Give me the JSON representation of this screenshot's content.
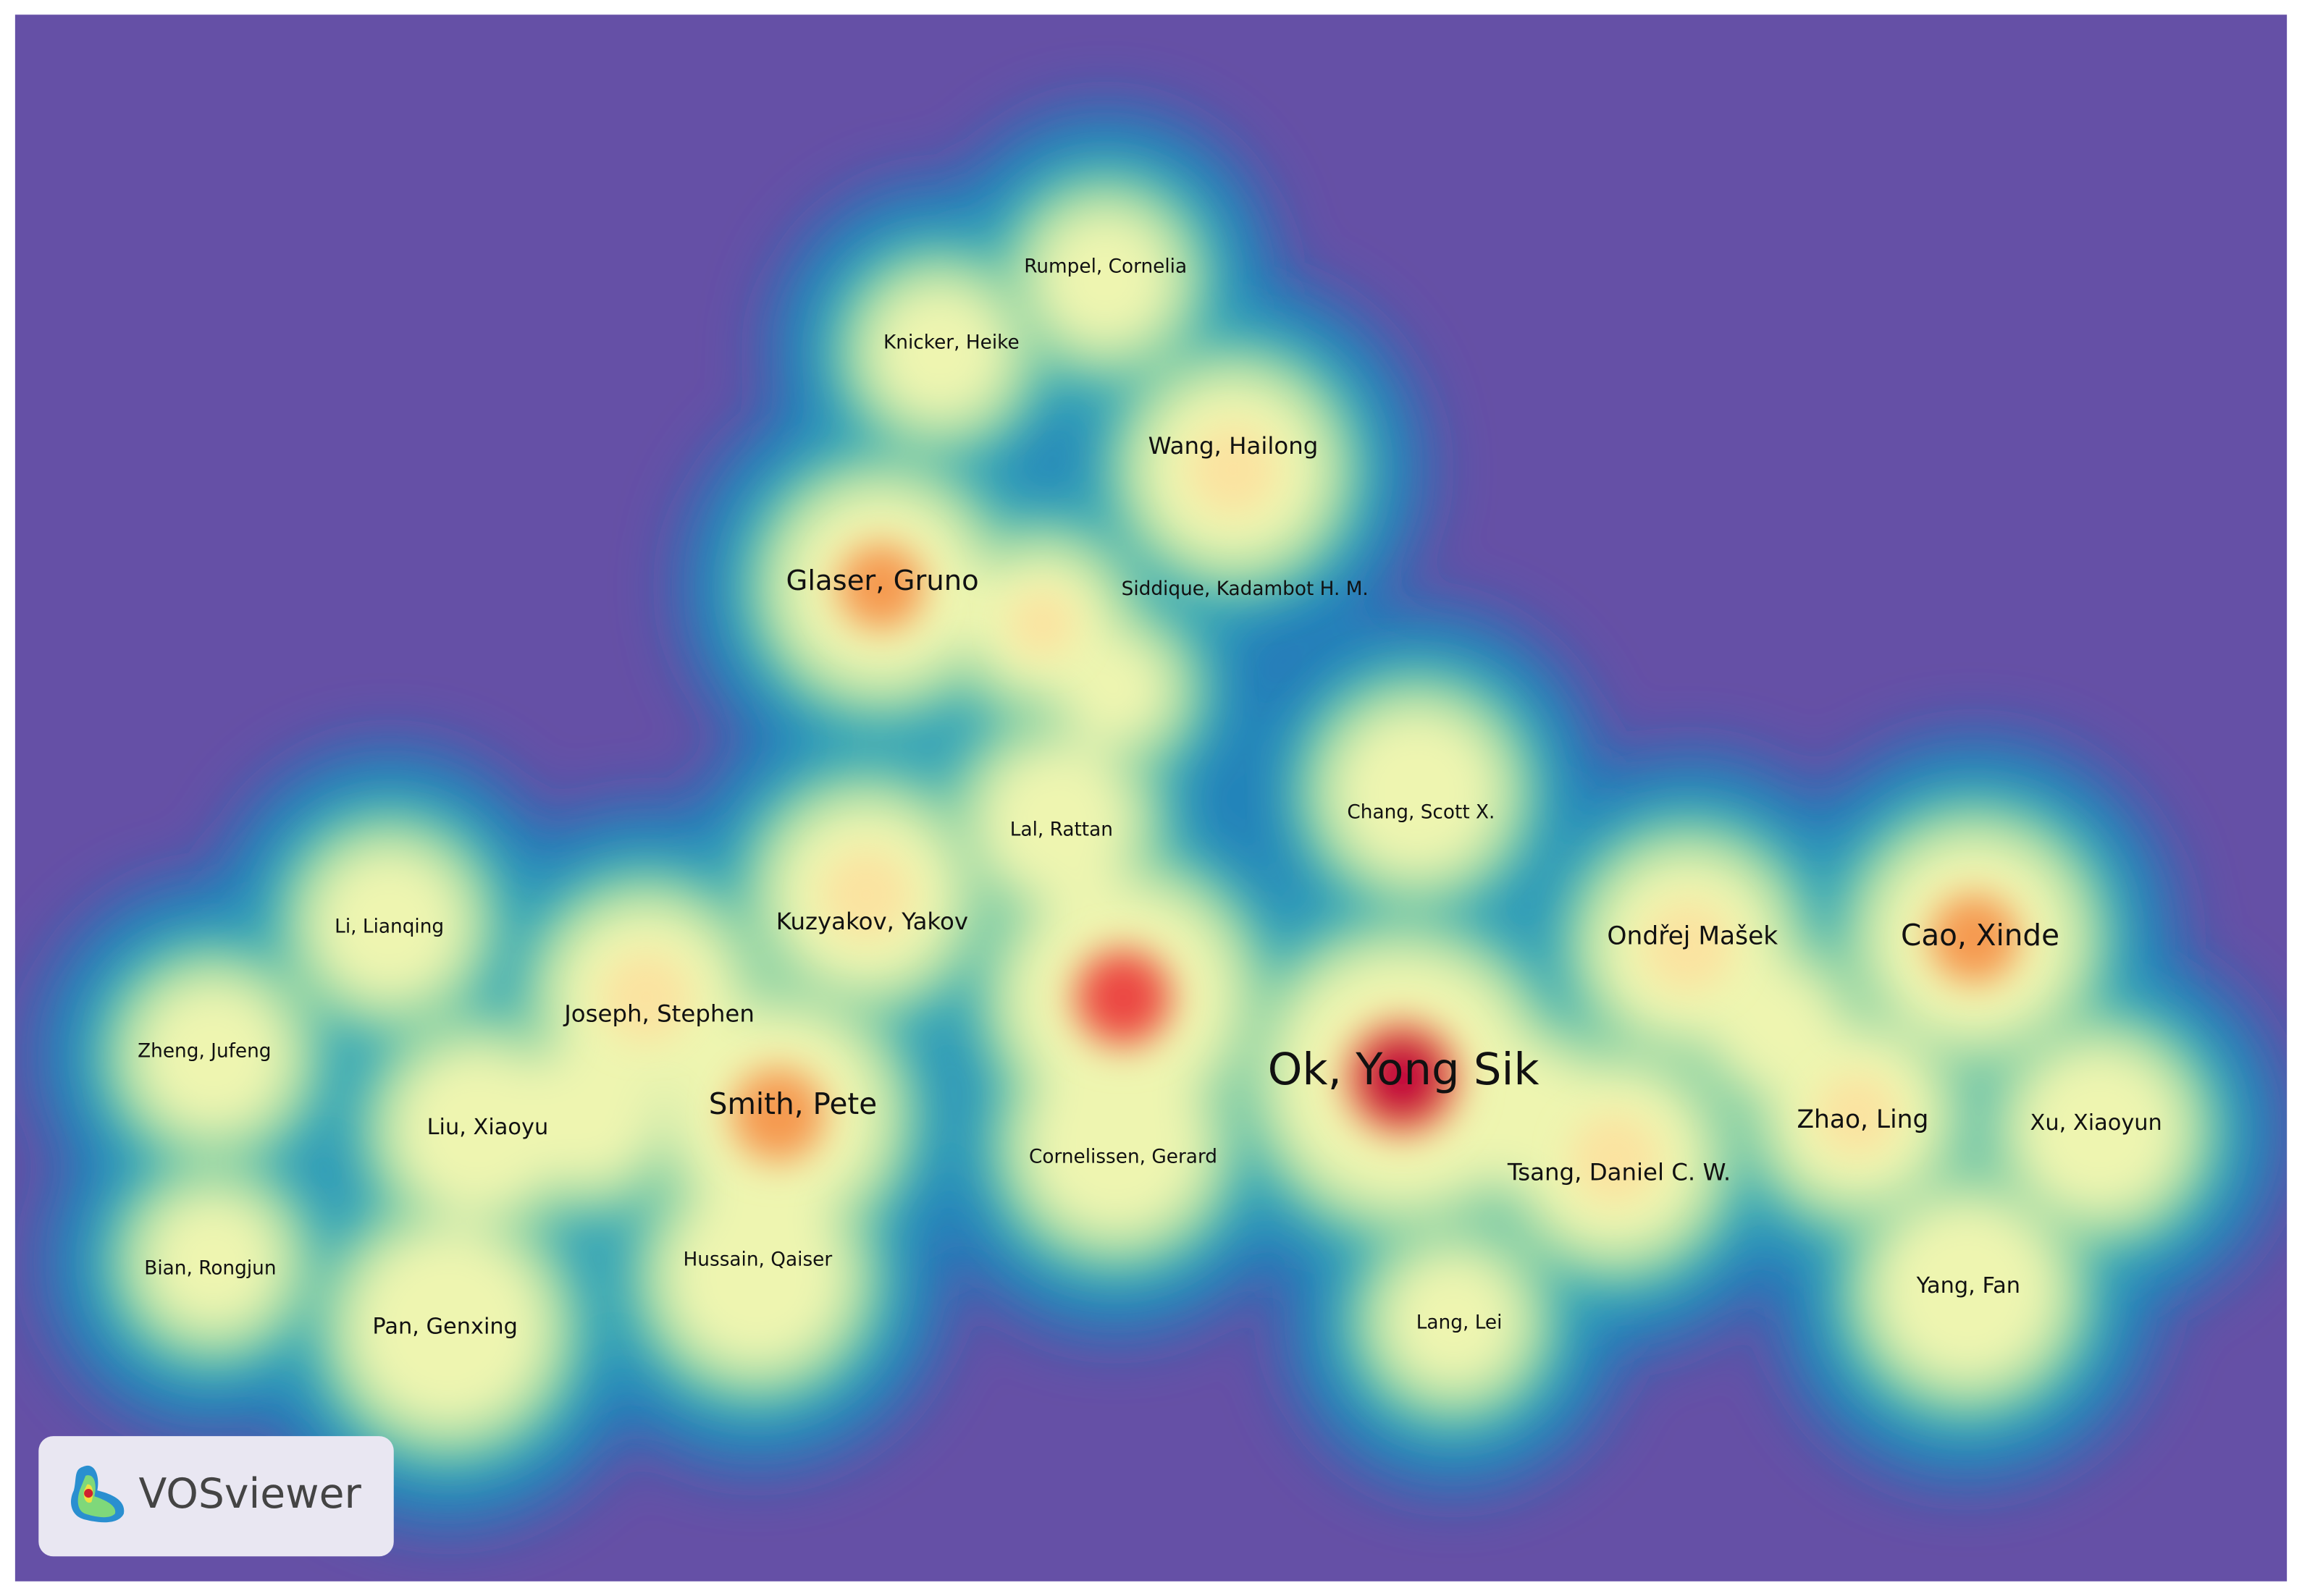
{
  "nodes": [
    {
      "label": "Rumpel, Cornelia"
    },
    {
      "label": "Knicker, Heike"
    },
    {
      "label": "Wang, Hailong"
    },
    {
      "label": "Glaser, Gruno"
    },
    {
      "label": "Siddique, Kadambot H. M."
    },
    {
      "label": "Lal, Rattan"
    },
    {
      "label": "Chang, Scott X."
    },
    {
      "label": "Kuzyakov, Yakov"
    },
    {
      "label": "Li, Lianqing"
    },
    {
      "label": "Zheng, Jufeng"
    },
    {
      "label": "Joseph, Stephen"
    },
    {
      "label": "Smith, Pete"
    },
    {
      "label": "Liu, Xiaoyu"
    },
    {
      "label": "Cornelissen, Gerard"
    },
    {
      "label": "Ok, Yong Sik"
    },
    {
      "label": "Ondřej Mašek"
    },
    {
      "label": "Cao, Xinde"
    },
    {
      "label": "Zhao, Ling"
    },
    {
      "label": "Xu, Xiaoyun"
    },
    {
      "label": "Tsang, Daniel C. W."
    },
    {
      "label": "Yang, Fan"
    },
    {
      "label": "Lang, Lei"
    },
    {
      "label": "Bian, Rongjun"
    },
    {
      "label": "Hussain, Qaiser"
    },
    {
      "label": "Pan, Genxing"
    }
  ],
  "logo": {
    "text": "VOSviewer"
  }
}
